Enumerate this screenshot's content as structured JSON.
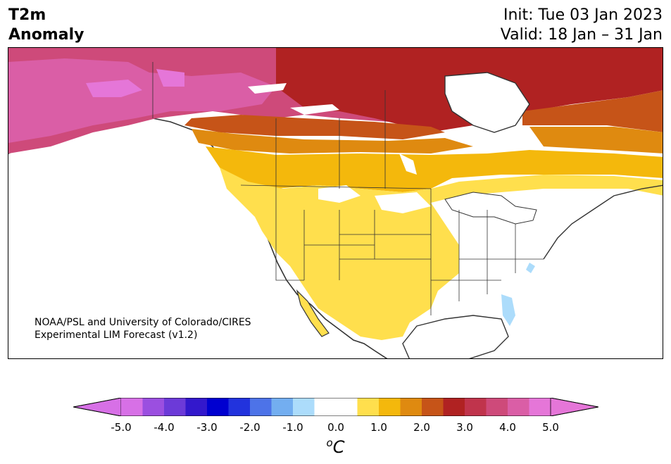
{
  "header": {
    "title_line1": "T2m",
    "title_line2": "Anomaly",
    "init_text": "Init: Tue 03 Jan 2023",
    "valid_text": "Valid: 18 Jan – 31 Jan"
  },
  "credit": {
    "line1": "NOAA/PSL and University of Colorado/CIRES",
    "line2": "Experimental LIM Forecast (v1.2)"
  },
  "colorbar": {
    "unit_base": "C",
    "unit_sup": "o",
    "ticks": [
      "-5.0",
      "-4.0",
      "-3.0",
      "-2.0",
      "-1.0",
      "0.0",
      "1.0",
      "2.0",
      "3.0",
      "4.0",
      "5.0"
    ],
    "colors": [
      "#d770e6",
      "#9b4fe0",
      "#6c3ad8",
      "#3318cc",
      "#0000d0",
      "#2233dd",
      "#4d73e8",
      "#73aef0",
      "#acdcfb",
      "#ffffff",
      "#ffffff",
      "#ffdf4d",
      "#f4b80c",
      "#df8a10",
      "#c65418",
      "#b02222",
      "#c0344c",
      "#ce4a7a",
      "#da5ea6",
      "#e576d8"
    ],
    "under_color": "#d770e6",
    "over_color": "#e576d8"
  },
  "map": {
    "anomaly_colors": {
      "warm_1": "#ffdf4d",
      "warm_2": "#f4b80c",
      "warm_3": "#df8a10",
      "warm_4": "#c65418",
      "warm_5": "#b02222",
      "warm_6": "#c0344c",
      "warm_7": "#ce4a7a",
      "warm_8": "#da5ea6",
      "warm_9": "#e576d8",
      "cool_1": "#acdcfb"
    }
  }
}
